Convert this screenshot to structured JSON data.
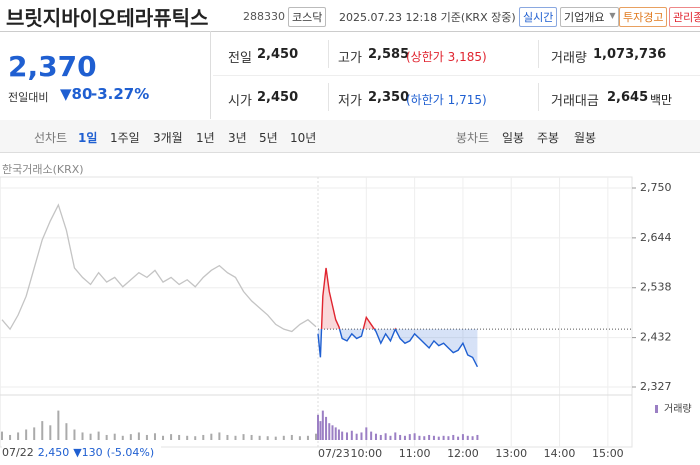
{
  "header": {
    "name": "브릿지바이오테라퓨틱스",
    "code": "288330",
    "market": "코스닥",
    "timestamp": "2025.07.23 12:18 기준(KRX 장중)",
    "buttons": [
      "실시간",
      "기업개요",
      "투자경고",
      "관리종목"
    ]
  },
  "price": {
    "current": "2,370",
    "change_label": "전일대비",
    "change": "80",
    "change_pct": "-3.27%"
  },
  "stats": [
    {
      "label": "전일",
      "value": "2,450"
    },
    {
      "label": "고가",
      "value": "2,585",
      "note": "(상한가 3,185)"
    },
    {
      "label": "거래량",
      "value": "1,073,736"
    },
    {
      "label": "시가",
      "value": "2,450"
    },
    {
      "label": "저가",
      "value": "2,350",
      "note": "(하한가 1,715)"
    },
    {
      "label": "거래대금",
      "value": "2,645",
      "unit": "백만"
    }
  ],
  "tabs": {
    "line_label": "선차트",
    "line": [
      "1일",
      "1주일",
      "3개월",
      "1년",
      "3년",
      "5년",
      "10년"
    ],
    "candle_label": "봉차트",
    "candle": [
      "일봉",
      "주봉",
      "월봉"
    ]
  },
  "chart_data": {
    "type": "line",
    "source": "한국거래소(KRX)",
    "ylim": [
      2327,
      2750
    ],
    "yticks": [
      {
        "value": 2750,
        "label": "2,750"
      },
      {
        "value": 2644,
        "label": "2,644"
      },
      {
        "value": 2538,
        "label": "2,538"
      },
      {
        "value": 2432,
        "label": "2,432"
      },
      {
        "value": 2327,
        "label": "2,327"
      }
    ],
    "reference": 2450,
    "xlim": [
      0,
      390
    ],
    "xticks": [
      {
        "value": 60,
        "label": "10:00"
      },
      {
        "value": 120,
        "label": "11:00"
      },
      {
        "value": 180,
        "label": "12:00"
      },
      {
        "value": 240,
        "label": "13:00"
      },
      {
        "value": 300,
        "label": "14:00"
      },
      {
        "value": 360,
        "label": "15:00"
      }
    ],
    "up_color": "#e0242f",
    "down_color": "#1f5fd1",
    "grid": true,
    "volume_label": "거래량",
    "vlim": [
      0,
      100
    ],
    "series": [
      {
        "date": "07/22",
        "color": "#c4c4c4",
        "values": [
          2470,
          2450,
          2480,
          2520,
          2580,
          2640,
          2680,
          2714,
          2660,
          2580,
          2560,
          2545,
          2570,
          2550,
          2560,
          2540,
          2555,
          2570,
          2560,
          2575,
          2550,
          2560,
          2545,
          2555,
          2540,
          2560,
          2575,
          2585,
          2570,
          2560,
          2530,
          2510,
          2495,
          2480,
          2460,
          2450,
          2445,
          2460,
          2470,
          2455
        ],
        "volume": [
          20,
          12,
          18,
          25,
          30,
          45,
          35,
          70,
          40,
          25,
          18,
          15,
          20,
          12,
          15,
          10,
          14,
          18,
          12,
          16,
          10,
          14,
          12,
          10,
          9,
          12,
          15,
          18,
          12,
          10,
          14,
          12,
          10,
          9,
          8,
          10,
          12,
          9,
          10,
          15
        ]
      },
      {
        "date": "07/23",
        "x": [
          0,
          3,
          6,
          10,
          14,
          18,
          22,
          26,
          30,
          36,
          42,
          48,
          54,
          60,
          66,
          72,
          78,
          84,
          90,
          96,
          102,
          108,
          114,
          120,
          126,
          132,
          138,
          144,
          150,
          156,
          162,
          168,
          174,
          180,
          186,
          192,
          198
        ],
        "values": [
          2440,
          2390,
          2520,
          2580,
          2530,
          2500,
          2470,
          2455,
          2430,
          2425,
          2440,
          2430,
          2435,
          2475,
          2460,
          2445,
          2420,
          2440,
          2425,
          2450,
          2430,
          2420,
          2425,
          2440,
          2430,
          2420,
          2410,
          2425,
          2415,
          2420,
          2410,
          2400,
          2405,
          2420,
          2395,
          2390,
          2370
        ],
        "volume": [
          60,
          45,
          70,
          55,
          40,
          35,
          30,
          25,
          20,
          18,
          22,
          15,
          18,
          30,
          20,
          15,
          12,
          16,
          10,
          18,
          12,
          10,
          14,
          16,
          10,
          9,
          12,
          10,
          8,
          10,
          9,
          12,
          8,
          14,
          10,
          9,
          12
        ]
      }
    ],
    "footer": {
      "date": "07/22",
      "price": "2,450",
      "change": "▼130",
      "change_pct": "(-5.04%)"
    }
  }
}
